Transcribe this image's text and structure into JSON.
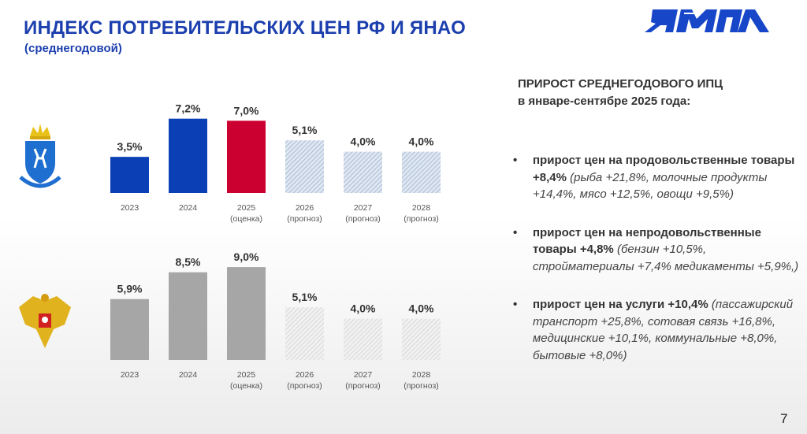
{
  "header": {
    "title": "ИНДЕКС ПОТРЕБИТЕЛЬСКИХ ЦЕН РФ И ЯНАО",
    "subtitle": "(среднегодовой)",
    "logo_text": "ЯМАЛ"
  },
  "emblems": {
    "top": "yamal-coat-of-arms-icon",
    "bottom": "russia-coat-of-arms-icon"
  },
  "colors": {
    "yanao_actual": "#0a3fb5",
    "estimate": "#cc0030",
    "forecast_blue": "#b8c9de",
    "rf_actual": "#a6a6a6",
    "forecast_gray": "#dcdcdc"
  },
  "chart_data": [
    {
      "type": "bar",
      "categories": [
        "2023",
        "2024",
        "2025 (оценка)",
        "2026 (прогноз)",
        "2027 (прогноз)",
        "2028 (прогноз)"
      ],
      "category_lines": [
        [
          "2023"
        ],
        [
          "2024"
        ],
        [
          "2025",
          "(оценка)"
        ],
        [
          "2026",
          "(прогноз)"
        ],
        [
          "2027",
          "(прогноз)"
        ],
        [
          "2028",
          "(прогноз)"
        ]
      ],
      "values": [
        3.5,
        7.2,
        7.0,
        5.1,
        4.0,
        4.0
      ],
      "data_labels": [
        "3,5%",
        "7,2%",
        "7,0%",
        "5,1%",
        "4,0%",
        "4,0%"
      ],
      "bar_styles": [
        "actual",
        "actual",
        "estimate",
        "forecast",
        "forecast",
        "forecast"
      ],
      "ylim": [
        0,
        8
      ],
      "grid": false
    },
    {
      "type": "bar",
      "categories": [
        "2023",
        "2024",
        "2025 (оценка)",
        "2026 (прогноз)",
        "2027 (прогноз)",
        "2028 (прогноз)"
      ],
      "category_lines": [
        [
          "2023"
        ],
        [
          "2024"
        ],
        [
          "2025",
          "(оценка)"
        ],
        [
          "2026",
          "(прогноз)"
        ],
        [
          "2027",
          "(прогноз)"
        ],
        [
          "2028",
          "(прогноз)"
        ]
      ],
      "values": [
        5.9,
        8.5,
        9.0,
        5.1,
        4.0,
        4.0
      ],
      "data_labels": [
        "5,9%",
        "8,5%",
        "9,0%",
        "5,1%",
        "4,0%",
        "4,0%"
      ],
      "bar_styles": [
        "actual",
        "actual",
        "actual",
        "forecast",
        "forecast",
        "forecast"
      ],
      "ylim": [
        0,
        10
      ],
      "grid": false
    }
  ],
  "right_panel": {
    "heading_line1": "ПРИРОСТ СРЕДНЕГОДОВОГО ИПЦ",
    "heading_line2": "в январе-сентябре 2025 года:",
    "bullets": [
      {
        "bold": "прирост цен на продовольственные товары +8,4%",
        "italic": " (рыба +21,8%, молочные продукты +14,4%, мясо +12,5%, овощи +9,5%)"
      },
      {
        "bold": "прирост цен на непродовольственные товары +4,8%",
        "italic": " (бензин +10,5%, стройматериалы +7,4% медикаменты +5,9%,)"
      },
      {
        "bold": "прирост цен на услуги +10,4%",
        "italic": " (пассажирский транспорт +25,8%, сотовая связь +16,8%, медицинские +10,1%, коммунальные +8,0%, бытовые +8,0%)"
      }
    ]
  },
  "page_number": "7"
}
